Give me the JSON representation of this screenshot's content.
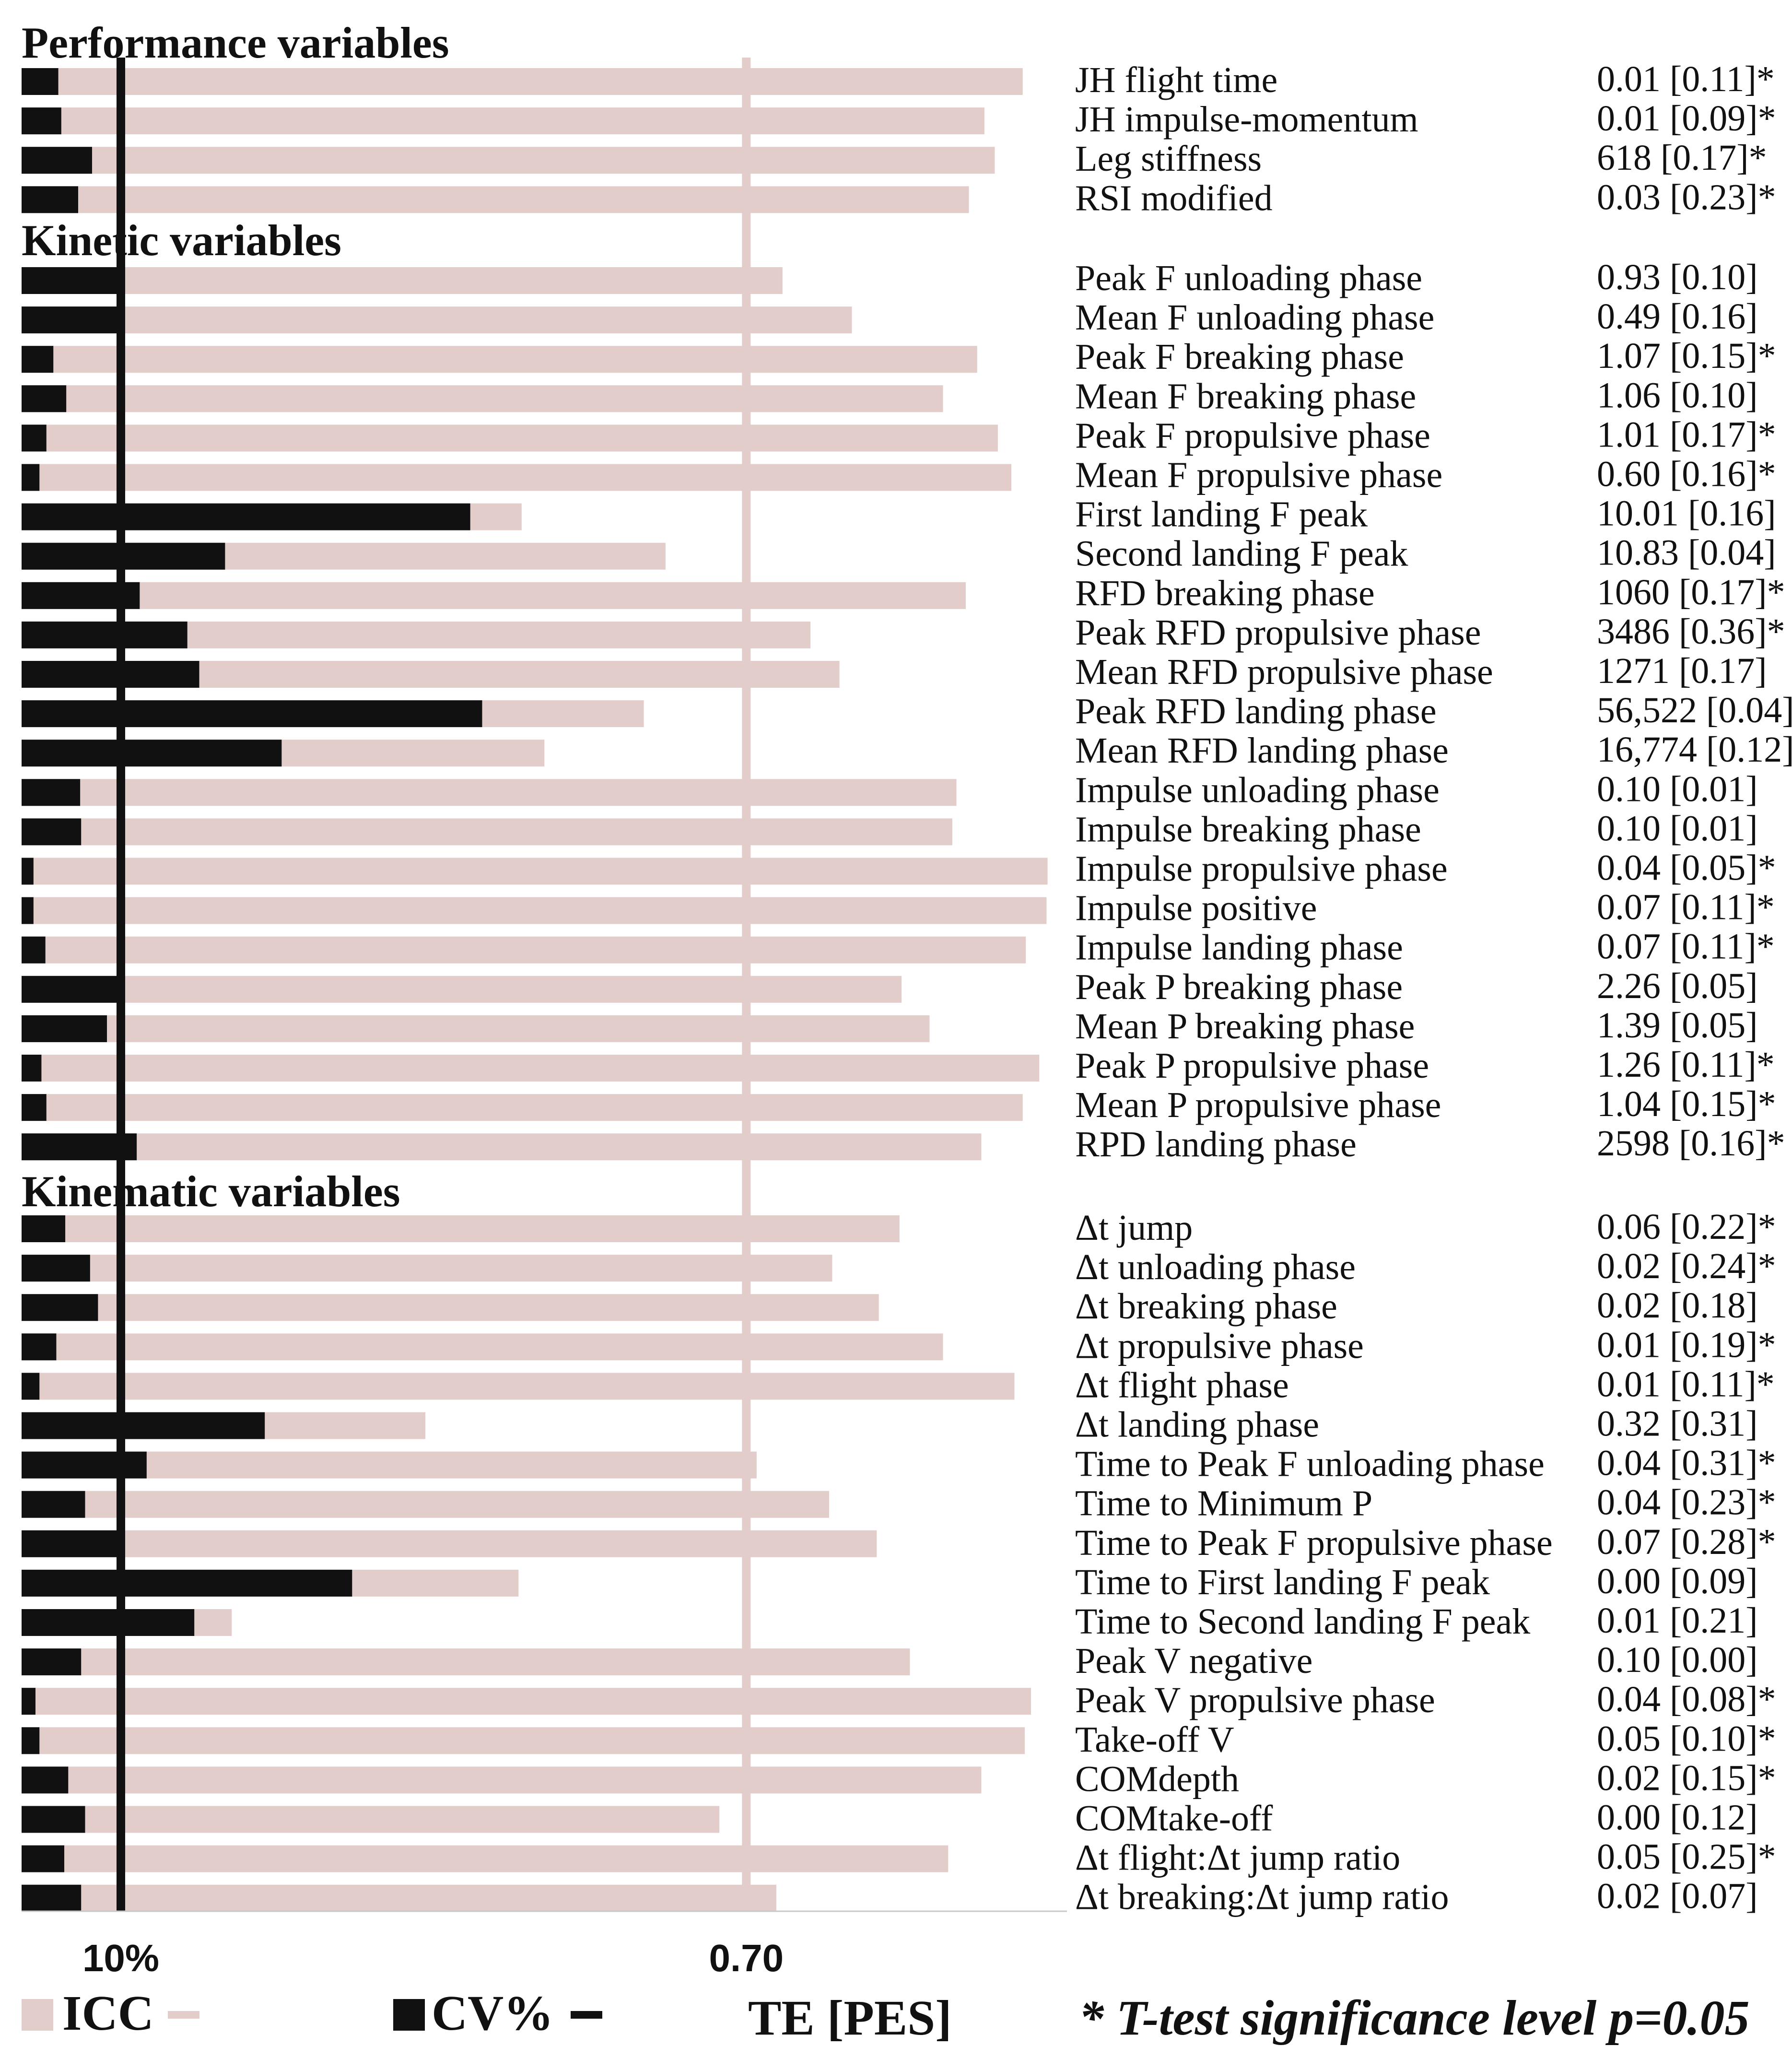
{
  "colors": {
    "icc": "#e3cdca",
    "cv": "#111111",
    "text": "#111111"
  },
  "chart_data": {
    "type": "bar",
    "orientation": "horizontal",
    "series_keys": [
      "icc",
      "cv"
    ],
    "icc_axis": {
      "range": [
        0,
        1
      ],
      "ticks": [
        {
          "value": 0.7,
          "label": "0.70"
        }
      ]
    },
    "cv_axis": {
      "range": [
        0,
        100
      ],
      "ticks": [
        {
          "value": 10,
          "label": "10%"
        }
      ]
    },
    "legend": {
      "icc": "ICC",
      "cv": "CV%",
      "te": "TE [PES]",
      "note": "* T-test significance level p=0.05"
    },
    "sections": [
      {
        "title": "Performance variables",
        "rows": [
          {
            "name": "JH flight time",
            "icc": 0.967,
            "cv": 3.7,
            "te": "0.01 [0.11]*"
          },
          {
            "name": "JH impulse-momentum",
            "icc": 0.93,
            "cv": 4.0,
            "te": "0.01 [0.09]*"
          },
          {
            "name": "Leg stiffness",
            "icc": 0.94,
            "cv": 7.1,
            "te": "618 [0.17]*"
          },
          {
            "name": "RSI modified",
            "icc": 0.915,
            "cv": 5.7,
            "te": "0.03 [0.23]*"
          }
        ]
      },
      {
        "title": "Kinetic variables",
        "rows": [
          {
            "name": "Peak F unloading phase",
            "icc": 0.735,
            "cv": 10.3,
            "te": "0.93 [0.10]"
          },
          {
            "name": "Mean F unloading phase",
            "icc": 0.802,
            "cv": 10.3,
            "te": "0.49 [0.16]"
          },
          {
            "name": "Peak F breaking phase",
            "icc": 0.923,
            "cv": 3.2,
            "te": "1.07 [0.15]*"
          },
          {
            "name": "Mean F breaking phase",
            "icc": 0.89,
            "cv": 4.5,
            "te": "1.06 [0.10]"
          },
          {
            "name": "Peak F propulsive phase",
            "icc": 0.943,
            "cv": 2.5,
            "te": "1.01 [0.17]*"
          },
          {
            "name": "Mean F propulsive phase",
            "icc": 0.956,
            "cv": 1.8,
            "te": "0.60 [0.16]*"
          },
          {
            "name": "First landing F peak",
            "icc": 0.483,
            "cv": 45.2,
            "te": "10.01 [0.16]"
          },
          {
            "name": "Second landing F peak",
            "icc": 0.622,
            "cv": 20.5,
            "te": "10.83 [0.04]"
          },
          {
            "name": "RFD breaking phase",
            "icc": 0.912,
            "cv": 11.9,
            "te": "1060 [0.17]*"
          },
          {
            "name": "Peak RFD propulsive phase",
            "icc": 0.762,
            "cv": 16.7,
            "te": "3486 [0.36]*"
          },
          {
            "name": "Mean RFD propulsive phase",
            "icc": 0.79,
            "cv": 17.9,
            "te": "1271 [0.17]"
          },
          {
            "name": "Peak RFD landing phase",
            "icc": 0.601,
            "cv": 46.4,
            "te": "56,522 [0.04]"
          },
          {
            "name": "Mean RFD landing phase",
            "icc": 0.505,
            "cv": 26.2,
            "te": "16,774 [0.12]"
          },
          {
            "name": "Impulse unloading phase",
            "icc": 0.903,
            "cv": 5.9,
            "te": "0.10 [0.01]"
          },
          {
            "name": "Impulse breaking phase",
            "icc": 0.899,
            "cv": 6.0,
            "te": "0.10 [0.01]"
          },
          {
            "name": "Impulse propulsive phase",
            "icc": 0.991,
            "cv": 1.2,
            "te": "0.04 [0.05]*"
          },
          {
            "name": "Impulse positive",
            "icc": 0.99,
            "cv": 1.2,
            "te": "0.07 [0.11]*"
          },
          {
            "name": "Impulse landing phase",
            "icc": 0.97,
            "cv": 2.4,
            "te": "0.07 [0.11]*"
          },
          {
            "name": "Peak P breaking phase",
            "icc": 0.85,
            "cv": 10.2,
            "te": "2.26 [0.05]"
          },
          {
            "name": "Mean P breaking phase",
            "icc": 0.877,
            "cv": 8.6,
            "te": "1.39 [0.05]"
          },
          {
            "name": "Peak P propulsive phase",
            "icc": 0.983,
            "cv": 2.0,
            "te": "1.26 [0.11]*"
          },
          {
            "name": "Mean P propulsive phase",
            "icc": 0.967,
            "cv": 2.5,
            "te": "1.04 [0.15]*"
          },
          {
            "name": "RPD landing phase",
            "icc": 0.927,
            "cv": 11.6,
            "te": "2598 [0.16]*"
          }
        ]
      },
      {
        "title": "Kinematic variables",
        "rows": [
          {
            "name": "Δt jump",
            "icc": 0.848,
            "cv": 4.4,
            "te": "0.06 [0.22]*"
          },
          {
            "name": "Δt unloading phase",
            "icc": 0.783,
            "cv": 6.9,
            "te": "0.02 [0.24]*"
          },
          {
            "name": "Δt breaking phase",
            "icc": 0.828,
            "cv": 7.7,
            "te": "0.02 [0.18]"
          },
          {
            "name": "Δt propulsive phase",
            "icc": 0.89,
            "cv": 3.5,
            "te": "0.01 [0.19]*"
          },
          {
            "name": "Δt flight phase",
            "icc": 0.959,
            "cv": 1.8,
            "te": "0.01 [0.11]*"
          },
          {
            "name": "Δt landing phase",
            "icc": 0.39,
            "cv": 24.5,
            "te": "0.32 [0.31]"
          },
          {
            "name": "Time to Peak F unloading phase",
            "icc": 0.71,
            "cv": 12.6,
            "te": "0.04 [0.31]*"
          },
          {
            "name": "Time to Minimum P",
            "icc": 0.78,
            "cv": 6.4,
            "te": "0.04 [0.23]*"
          },
          {
            "name": "Time to Peak F propulsive phase",
            "icc": 0.826,
            "cv": 10.2,
            "te": "0.07 [0.28]*"
          },
          {
            "name": "Time to First landing F peak",
            "icc": 0.48,
            "cv": 33.3,
            "te": "0.00 [0.09]"
          },
          {
            "name": "Time to Second landing F peak",
            "icc": 0.203,
            "cv": 17.4,
            "te": "0.01 [0.21]"
          },
          {
            "name": "Peak V negative",
            "icc": 0.858,
            "cv": 6.0,
            "te": "0.10 [0.00]"
          },
          {
            "name": "Peak V propulsive phase",
            "icc": 0.975,
            "cv": 1.4,
            "te": "0.04 [0.08]*"
          },
          {
            "name": "Take-off V",
            "icc": 0.969,
            "cv": 1.8,
            "te": "0.05 [0.10]*"
          },
          {
            "name": "COMdepth",
            "icc": 0.927,
            "cv": 4.7,
            "te": "0.02 [0.15]*"
          },
          {
            "name": "COMtake-off",
            "icc": 0.674,
            "cv": 6.4,
            "te": "0.00 [0.12]"
          },
          {
            "name": "Δt flight:Δt jump ratio",
            "icc": 0.895,
            "cv": 4.3,
            "te": "0.05 [0.25]*"
          },
          {
            "name": "Δt breaking:Δt jump ratio",
            "icc": 0.729,
            "cv": 6.0,
            "te": "0.02 [0.07]"
          }
        ]
      }
    ]
  }
}
